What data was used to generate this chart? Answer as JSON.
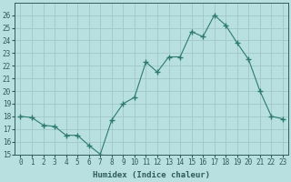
{
  "x": [
    0,
    1,
    2,
    3,
    4,
    5,
    6,
    7,
    8,
    9,
    10,
    11,
    12,
    13,
    14,
    15,
    16,
    17,
    18,
    19,
    20,
    21,
    22,
    23
  ],
  "y": [
    18,
    17.9,
    17.3,
    17.2,
    16.5,
    16.5,
    15.7,
    15.0,
    17.7,
    19.0,
    19.5,
    22.3,
    21.5,
    22.7,
    22.7,
    24.7,
    24.3,
    26.0,
    25.2,
    23.8,
    22.5,
    20.0,
    18.0,
    17.8
  ],
  "line_color": "#2e7b6e",
  "marker": "+",
  "marker_size": 4,
  "bg_color": "#b8e0e0",
  "grid_color": "#a0c8c8",
  "tick_color": "#2e5b5b",
  "xlabel": "Humidex (Indice chaleur)",
  "ylim": [
    15,
    27
  ],
  "xlim": [
    -0.5,
    23.5
  ],
  "yticks": [
    15,
    16,
    17,
    18,
    19,
    20,
    21,
    22,
    23,
    24,
    25,
    26
  ],
  "xticks": [
    0,
    1,
    2,
    3,
    4,
    5,
    6,
    7,
    8,
    9,
    10,
    11,
    12,
    13,
    14,
    15,
    16,
    17,
    18,
    19,
    20,
    21,
    22,
    23
  ],
  "label_fontsize": 6.5,
  "tick_fontsize": 5.5
}
